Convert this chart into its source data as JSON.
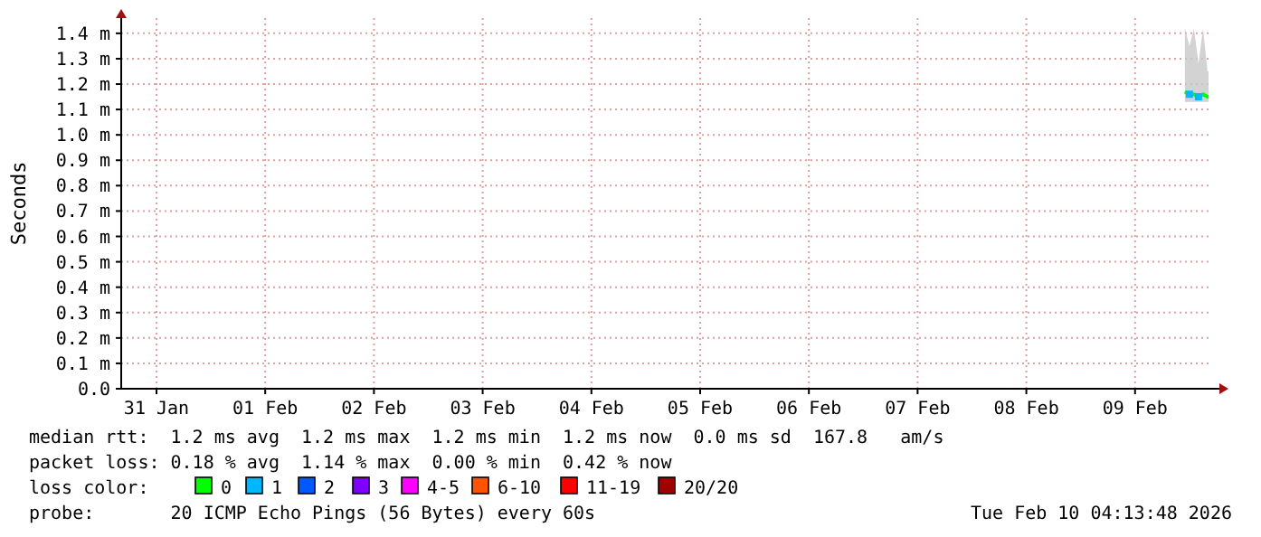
{
  "chart_data": {
    "type": "line",
    "ylabel": "Seconds",
    "legend_title": "loss color:",
    "legend": "bottom",
    "grid": true,
    "x": [
      "2026-02-09T23:00",
      "2026-02-10T00:00",
      "2026-02-10T01:00",
      "2026-02-10T02:00",
      "2026-02-10T03:00",
      "2026-02-10T04:00",
      "2026-02-10T04:13"
    ],
    "xlim": [
      "2026-01-31T04:13",
      "2026-02-10T04:13"
    ],
    "xticks": [
      {
        "value": "2026-01-31T12:00",
        "label": "31 Jan"
      },
      {
        "value": "2026-02-01T12:00",
        "label": "01 Feb"
      },
      {
        "value": "2026-02-02T12:00",
        "label": "02 Feb"
      },
      {
        "value": "2026-02-03T12:00",
        "label": "03 Feb"
      },
      {
        "value": "2026-02-04T12:00",
        "label": "04 Feb"
      },
      {
        "value": "2026-02-05T12:00",
        "label": "05 Feb"
      },
      {
        "value": "2026-02-06T12:00",
        "label": "06 Feb"
      },
      {
        "value": "2026-02-07T12:00",
        "label": "07 Feb"
      },
      {
        "value": "2026-02-08T12:00",
        "label": "08 Feb"
      },
      {
        "value": "2026-02-09T12:00",
        "label": "09 Feb"
      }
    ],
    "ylim": [
      0,
      1.46
    ],
    "yticks": [
      {
        "value": 0,
        "label": "0.0"
      },
      {
        "value": 0.1,
        "label": "0.1 m"
      },
      {
        "value": 0.2,
        "label": "0.2 m"
      },
      {
        "value": 0.3,
        "label": "0.3 m"
      },
      {
        "value": 0.4,
        "label": "0.4 m"
      },
      {
        "value": 0.5,
        "label": "0.5 m"
      },
      {
        "value": 0.6,
        "label": "0.6 m"
      },
      {
        "value": 0.7,
        "label": "0.7 m"
      },
      {
        "value": 0.8,
        "label": "0.8 m"
      },
      {
        "value": 0.9,
        "label": "0.9 m"
      },
      {
        "value": 1.0,
        "label": "1.0 m"
      },
      {
        "value": 1.1,
        "label": "1.1 m"
      },
      {
        "value": 1.2,
        "label": "1.2 m"
      },
      {
        "value": 1.3,
        "label": "1.3 m"
      },
      {
        "value": 1.4,
        "label": "1.4 m"
      }
    ],
    "series": [
      {
        "name": "0",
        "color": "#00ff00",
        "values": [
          1.17,
          1.16,
          1.16,
          1.15,
          1.16,
          1.15,
          1.15
        ],
        "lower": [
          1.13,
          1.13,
          1.13,
          1.13,
          1.13,
          1.13,
          1.13
        ],
        "upper": [
          1.42,
          1.35,
          1.42,
          1.28,
          1.42,
          1.25,
          1.25
        ]
      },
      {
        "name": "1",
        "color": "#00b8ff",
        "type": "scatter",
        "marker": "square",
        "values": [
          null,
          1.16,
          null,
          1.15,
          null,
          null,
          null
        ]
      },
      {
        "name": "2",
        "color": "#0059ff",
        "values": [
          null,
          null,
          null,
          null,
          null,
          null,
          null
        ]
      },
      {
        "name": "3",
        "color": "#7e00ff",
        "values": [
          null,
          null,
          null,
          null,
          null,
          null,
          null
        ]
      },
      {
        "name": "4-5",
        "color": "#ff00ff",
        "values": [
          null,
          null,
          null,
          null,
          null,
          null,
          null
        ]
      },
      {
        "name": "6-10",
        "color": "#ff5500",
        "values": [
          null,
          null,
          null,
          null,
          null,
          null,
          null
        ]
      },
      {
        "name": "11-19",
        "color": "#ff0000",
        "values": [
          null,
          null,
          null,
          null,
          null,
          null,
          null
        ]
      },
      {
        "name": "20/20",
        "color": "#a10000",
        "values": [
          null,
          null,
          null,
          null,
          null,
          null,
          null
        ]
      }
    ],
    "annotations": [
      "median rtt:  1.2 ms avg  1.2 ms max  1.2 ms min  1.2 ms now  0.0 ms sd  167.8   am/s",
      "packet loss: 0.18 % avg  1.14 % max  0.00 % min  0.42 % now",
      "probe:       20 ICMP Echo Pings (56 Bytes) every 60s",
      "Tue Feb 10 04:13:48 2026"
    ]
  }
}
